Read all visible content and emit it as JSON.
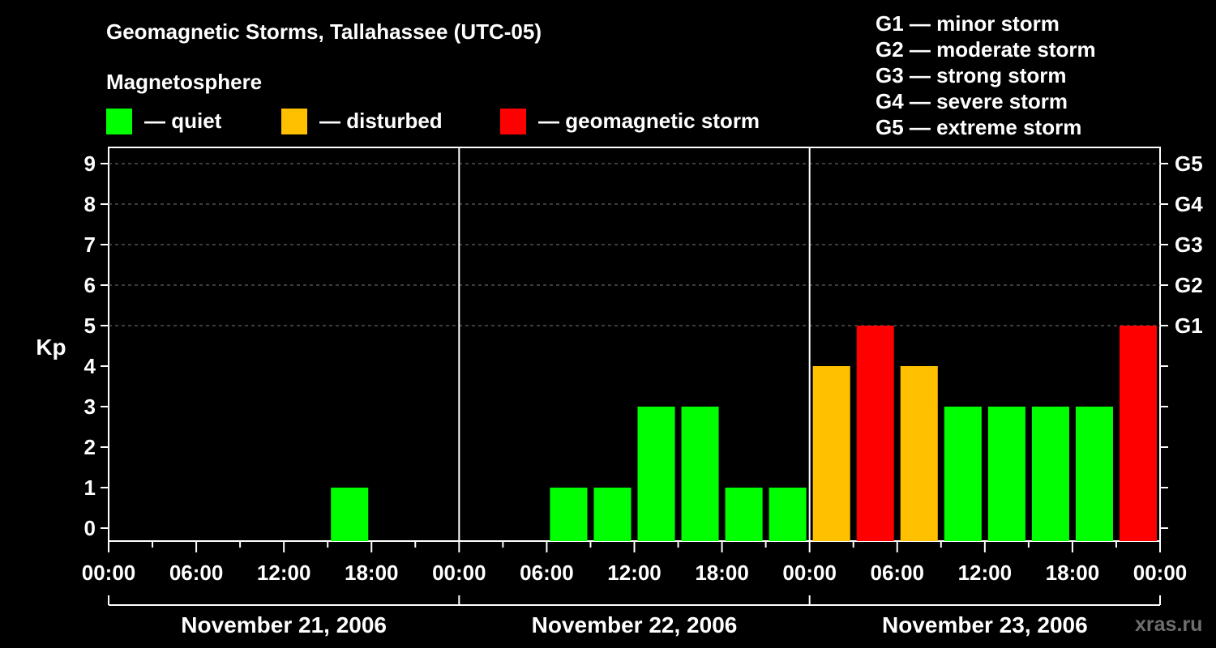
{
  "header": {
    "title": "Geomagnetic Storms, Tallahassee (UTC-05)",
    "subtitle": "Magnetosphere"
  },
  "legend": [
    {
      "label": "— quiet",
      "color": "#00ff00"
    },
    {
      "label": "— disturbed",
      "color": "#ffc000"
    },
    {
      "label": "— geomagnetic storm",
      "color": "#ff0000"
    }
  ],
  "storm_scale": [
    "G1 — minor storm",
    "G2 — moderate storm",
    "G3 — strong storm",
    "G4 — severe storm",
    "G5 — extreme storm"
  ],
  "watermark": "xras.ru",
  "chart_data": {
    "type": "bar",
    "ylabel": "Kp",
    "ylim": [
      0,
      9
    ],
    "yticks": [
      "0",
      "1",
      "2",
      "3",
      "4",
      "5",
      "6",
      "7",
      "8",
      "9"
    ],
    "right_ticks": [
      {
        "kp": 5,
        "label": "G1"
      },
      {
        "kp": 6,
        "label": "G2"
      },
      {
        "kp": 7,
        "label": "G3"
      },
      {
        "kp": 8,
        "label": "G4"
      },
      {
        "kp": 9,
        "label": "G5"
      }
    ],
    "grid": true,
    "xticks": [
      "00:00",
      "06:00",
      "12:00",
      "18:00",
      "00:00",
      "06:00",
      "12:00",
      "18:00",
      "00:00",
      "06:00",
      "12:00",
      "18:00",
      "00:00"
    ],
    "days": [
      "November 21, 2006",
      "November 22, 2006",
      "November 23, 2006"
    ],
    "interval_hours": 3,
    "values": [
      0,
      0,
      0,
      0,
      0,
      1,
      0,
      0,
      0,
      0,
      1,
      1,
      3,
      3,
      1,
      1,
      4,
      5,
      4,
      3,
      3,
      3,
      3,
      5
    ],
    "colors": {
      "quiet": "#00ff00",
      "disturbed": "#ffc000",
      "storm": "#ff0000"
    }
  }
}
